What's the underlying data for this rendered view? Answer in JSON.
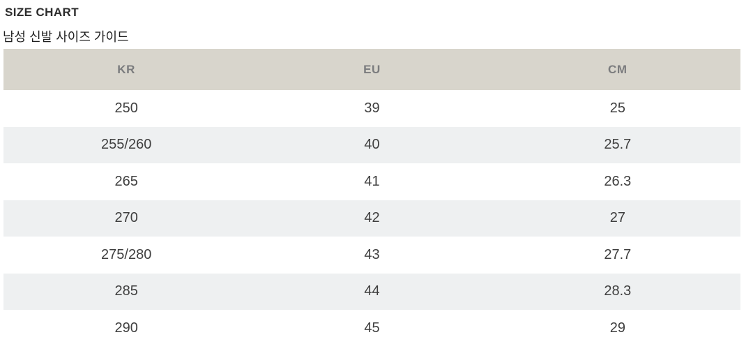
{
  "page": {
    "title": "SIZE CHART",
    "subtitle": "남성 신발 사이즈 가이드"
  },
  "size_chart": {
    "columns": [
      "KR",
      "EU",
      "CM"
    ],
    "rows": [
      {
        "kr": "250",
        "eu": "39",
        "cm": "25"
      },
      {
        "kr": "255/260",
        "eu": "40",
        "cm": "25.7"
      },
      {
        "kr": "265",
        "eu": "41",
        "cm": "26.3"
      },
      {
        "kr": "270",
        "eu": "42",
        "cm": "27"
      },
      {
        "kr": "275/280",
        "eu": "43",
        "cm": "27.7"
      },
      {
        "kr": "285",
        "eu": "44",
        "cm": "28.3"
      },
      {
        "kr": "290",
        "eu": "45",
        "cm": "29"
      }
    ],
    "colors": {
      "header_bg": "#d8d5cc",
      "alt_row_bg": "#eef0f1",
      "header_text": "#7b7c7e",
      "cell_text": "#3f3f3f",
      "title_text": "#2d2d2d"
    }
  }
}
